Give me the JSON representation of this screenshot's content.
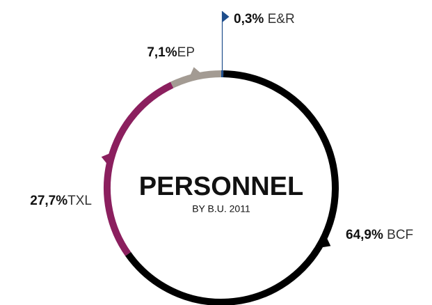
{
  "chart_data": {
    "type": "donut",
    "title": "PERSONNEL",
    "subtitle": "BY B.U. 2011",
    "categories": [
      "E&R",
      "BCF",
      "TXL",
      "EP"
    ],
    "values": [
      0.3,
      64.9,
      27.7,
      7.1
    ],
    "value_labels": [
      "0,3%",
      "64,9%",
      "27,7%",
      "7,1%"
    ],
    "colors": [
      "#1f4e8c",
      "#000000",
      "#8b1f5e",
      "#a39b93"
    ]
  }
}
